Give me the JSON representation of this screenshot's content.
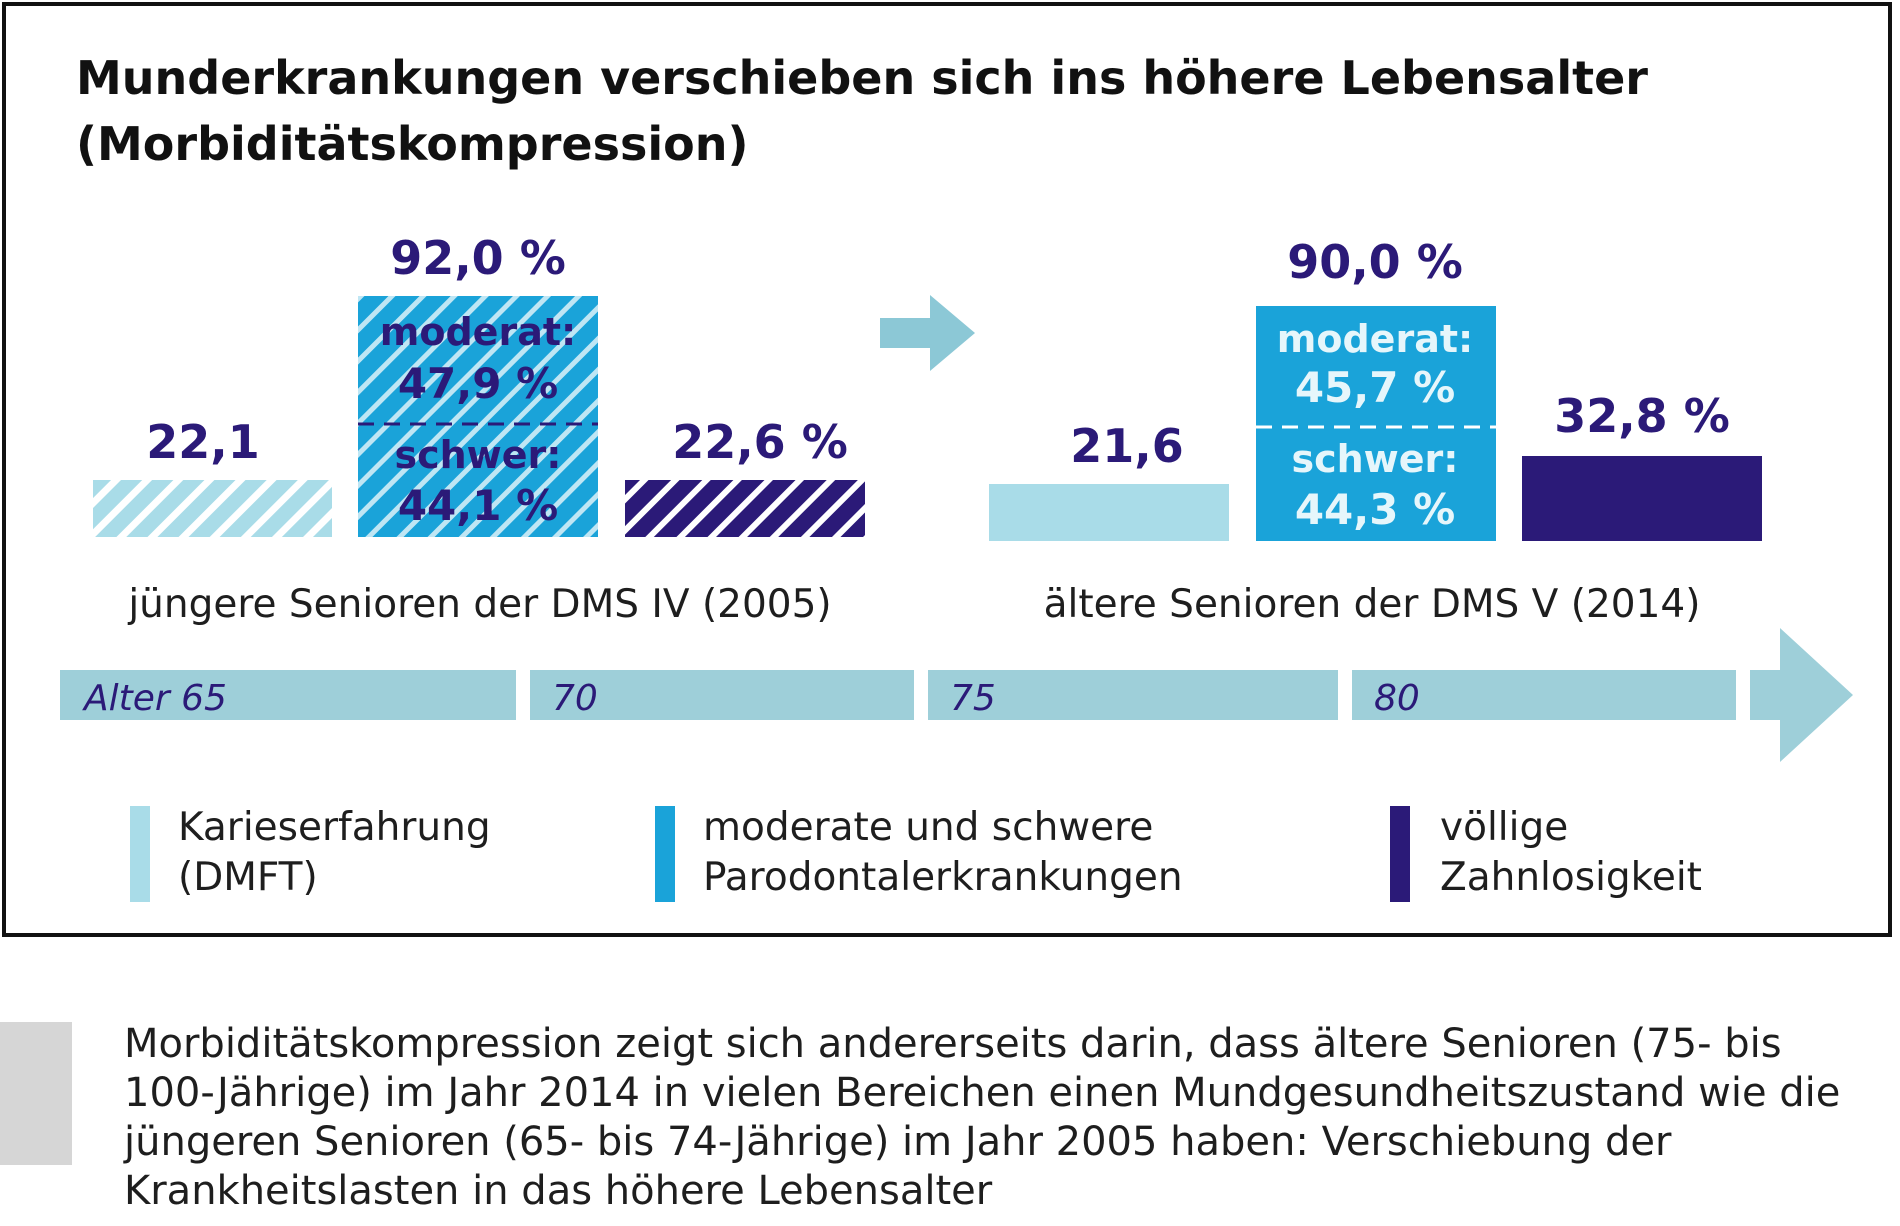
{
  "chart_data": {
    "type": "bar",
    "title": "Munderkrankungen verschieben sich ins höhere Lebensalter",
    "subtitle": "(Morbiditätskompression)",
    "groups": [
      {
        "name": "jüngere Senioren der DMS IV (2005)",
        "caries_label": "22,1",
        "perio_total_label": "92,0 %",
        "perio_moderate_label": "moderat:",
        "perio_moderate_value_label": "47,9 %",
        "perio_severe_label": "schwer:",
        "perio_severe_value_label": "44,1 %",
        "edentulous_label": "22,6 %"
      },
      {
        "name": "ältere Senioren der DMS V (2014)",
        "caries_label": "21,6",
        "perio_total_label": "90,0 %",
        "perio_moderate_label": "moderat:",
        "perio_moderate_value_label": "45,7 %",
        "perio_severe_label": "schwer:",
        "perio_severe_value_label": "44,3 %",
        "edentulous_label": "32,8 %"
      }
    ],
    "series": [
      {
        "name": "Karieserfahrung (DMFT)",
        "values": [
          22.1,
          21.6
        ],
        "color": "#a9dce8"
      },
      {
        "name": "moderate und schwere Parodontalerkrankungen",
        "values": [
          92.0,
          90.0
        ],
        "moderate": [
          47.9,
          45.7
        ],
        "severe": [
          44.1,
          44.3
        ],
        "color": "#1aa3d9"
      },
      {
        "name": "völlige Zahnlosigkeit",
        "values": [
          22.6,
          32.8
        ],
        "color": "#2b1a78"
      }
    ],
    "pattern_2005": "hatched",
    "pattern_2014": "solid",
    "age_axis": [
      "Alter 65",
      "70",
      "75",
      "80"
    ],
    "legend": [
      {
        "line1": "Karieserfahrung",
        "line2": "(DMFT)",
        "color": "#a9dce8"
      },
      {
        "line1": "moderate und schwere",
        "line2": "Parodontalerkrankungen",
        "color": "#1aa3d9"
      },
      {
        "line1": "völlige",
        "line2": "Zahnlosigkeit",
        "color": "#2b1a78"
      }
    ]
  },
  "caption": "Morbiditätskompression zeigt sich andererseits darin, dass ältere Senioren (75- bis 100-Jährige) im Jahr 2014 in vielen Bereichen einen Mundgesundheitszustand wie die jüngeren Senioren (65- bis 74-Jährige) im Jahr 2005 haben: Verschiebung der Krankheitslasten in das höhere Lebensalter",
  "colors": {
    "title": "#111111",
    "value_text": "#2b1a78",
    "axis_band": "#9ecfd9",
    "caries": "#a9dce8",
    "perio": "#1aa3d9",
    "edentulous": "#2b1a78",
    "caption_sidebar": "#d6d6d6"
  }
}
